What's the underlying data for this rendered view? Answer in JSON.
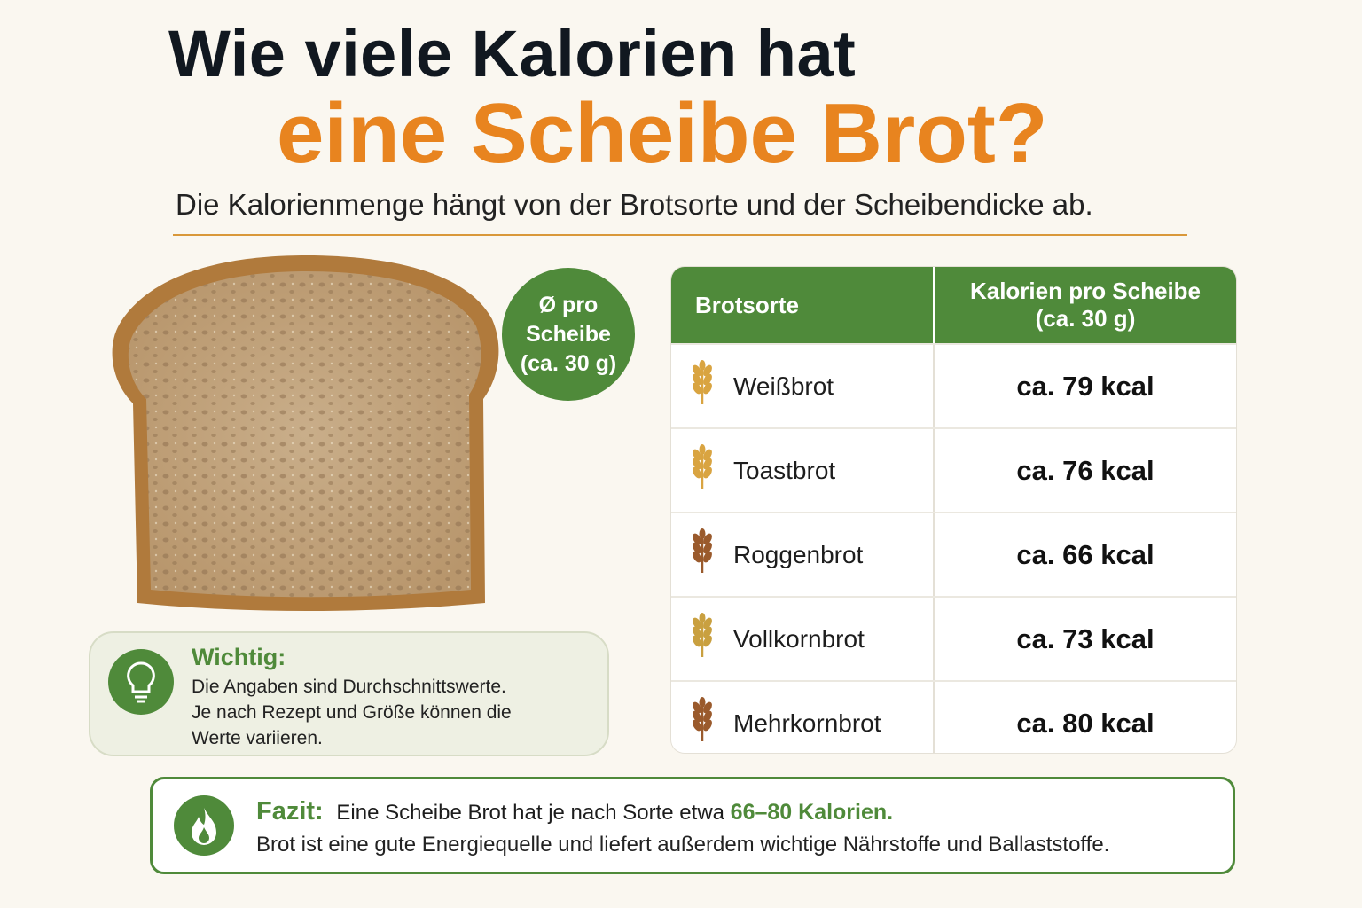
{
  "header": {
    "title_line1": "Wie viele Kalorien hat",
    "title_line2": "eine Scheibe Brot?",
    "subtitle": "Die Kalorienmenge hängt von der Brotsorte und der Scheibendicke ab."
  },
  "badge": {
    "lines": [
      "Ø pro",
      "Scheibe",
      "(ca. 30 g)"
    ]
  },
  "table": {
    "header": {
      "col1": "Brotsorte",
      "col2_lines": [
        "Kalorien pro Scheibe",
        "(ca. 30 g)"
      ]
    },
    "rows": [
      [
        "Weißbrot",
        "ca. 79 kcal"
      ],
      [
        "Toastbrot",
        "ca. 76 kcal"
      ],
      [
        "Roggenbrot",
        "ca. 66 kcal"
      ],
      [
        "Vollkornbrot",
        "ca. 73 kcal"
      ],
      [
        "Mehrkornbrot",
        "ca. 80 kcal"
      ]
    ]
  },
  "note": {
    "title": "Wichtig:",
    "lines": [
      "Die Angaben sind Durchschnittswerte.",
      "Je nach Rezept und Größe können die",
      "Werte variieren."
    ]
  },
  "conclusion": {
    "label": "Fazit:",
    "text": "Eine Scheibe Brot hat je nach Sorte etwa",
    "highlight": "66–80 Kalorien.",
    "line2": "Brot ist eine gute Energiequelle und liefert außerdem wichtige Nährstoffe und Ballaststoffe."
  }
}
